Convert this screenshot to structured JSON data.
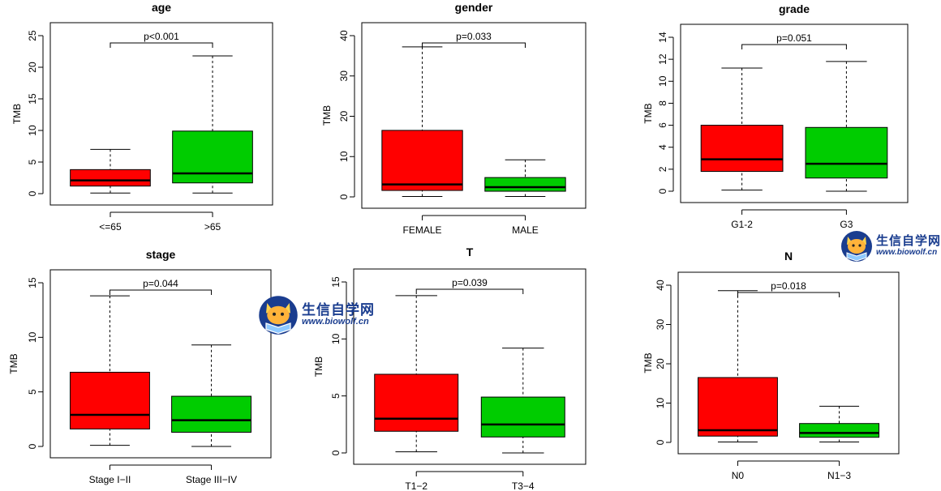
{
  "chart_data": [
    {
      "type": "box",
      "title": "age",
      "ylabel": "TMB",
      "ylim": [
        0,
        25
      ],
      "yticks": [
        0,
        5,
        10,
        15,
        20,
        25
      ],
      "categories": [
        "<=65",
        ">65"
      ],
      "boxes": [
        {
          "min": 0.1,
          "q1": 1.2,
          "median": 2.1,
          "q3": 3.8,
          "max": 7.0
        },
        {
          "min": 0.1,
          "q1": 1.7,
          "median": 3.2,
          "q3": 9.9,
          "max": 21.8
        }
      ],
      "annotation": "p<0.001"
    },
    {
      "type": "box",
      "title": "gender",
      "ylabel": "",
      "ylim": [
        0,
        40
      ],
      "yticks": [
        0,
        10,
        20,
        30,
        40
      ],
      "categories": [
        "FEMALE",
        "MALE"
      ],
      "boxes": [
        {
          "min": 0.1,
          "q1": 1.6,
          "median": 3.1,
          "q3": 16.5,
          "max": 37.2
        },
        {
          "min": 0.1,
          "q1": 1.4,
          "median": 2.4,
          "q3": 4.8,
          "max": 9.2
        }
      ],
      "annotation": "p=0.033"
    },
    {
      "type": "box",
      "title": "grade",
      "ylabel": "TMB",
      "ylim": [
        0,
        14
      ],
      "yticks": [
        0,
        2,
        4,
        6,
        8,
        10,
        12,
        14
      ],
      "categories": [
        "G1-2",
        "G3"
      ],
      "boxes": [
        {
          "min": 0.1,
          "q1": 1.8,
          "median": 2.9,
          "q3": 6.0,
          "max": 11.2
        },
        {
          "min": 0.0,
          "q1": 1.2,
          "median": 2.5,
          "q3": 5.8,
          "max": 11.8
        }
      ],
      "annotation": "p=0.051"
    },
    {
      "type": "box",
      "title": "stage",
      "ylabel": "TMB",
      "ylim": [
        0,
        15
      ],
      "yticks": [
        0,
        5,
        10,
        15
      ],
      "categories": [
        "Stage I−II",
        "Stage III−IV"
      ],
      "boxes": [
        {
          "min": 0.1,
          "q1": 1.6,
          "median": 2.9,
          "q3": 6.8,
          "max": 13.8
        },
        {
          "min": 0.0,
          "q1": 1.3,
          "median": 2.4,
          "q3": 4.6,
          "max": 9.3
        }
      ],
      "annotation": "p=0.044"
    },
    {
      "type": "box",
      "title": "T",
      "ylabel": "TMB",
      "ylim": [
        0,
        15
      ],
      "yticks": [
        0,
        5,
        10,
        15
      ],
      "categories": [
        "T1−2",
        "T3−4"
      ],
      "boxes": [
        {
          "min": 0.1,
          "q1": 1.9,
          "median": 3.0,
          "q3": 6.9,
          "max": 13.8
        },
        {
          "min": 0.0,
          "q1": 1.4,
          "median": 2.5,
          "q3": 4.9,
          "max": 9.2
        }
      ],
      "annotation": "p=0.039"
    },
    {
      "type": "box",
      "title": "N",
      "ylabel": "TMB",
      "ylim": [
        0,
        40
      ],
      "yticks": [
        0,
        10,
        20,
        30,
        40
      ],
      "categories": [
        "N0",
        "N1−3"
      ],
      "boxes": [
        {
          "min": 0.1,
          "q1": 1.6,
          "median": 3.1,
          "q3": 16.5,
          "max": 38.6
        },
        {
          "min": 0.1,
          "q1": 1.3,
          "median": 2.4,
          "q3": 4.8,
          "max": 9.2
        }
      ],
      "annotation": "p=0.018"
    }
  ],
  "colors": {
    "group1": "#ff0000",
    "group2": "#00cc00",
    "median": "#000000",
    "watermark": "#1a3d8f"
  },
  "watermarks": [
    {
      "name": "生信自学网",
      "url": "www.biowolf.cn",
      "icon": "fox-reading-book-logo"
    },
    {
      "name": "生信自学网",
      "url": "www.biowolf.cn",
      "icon": "fox-reading-book-logo"
    }
  ]
}
